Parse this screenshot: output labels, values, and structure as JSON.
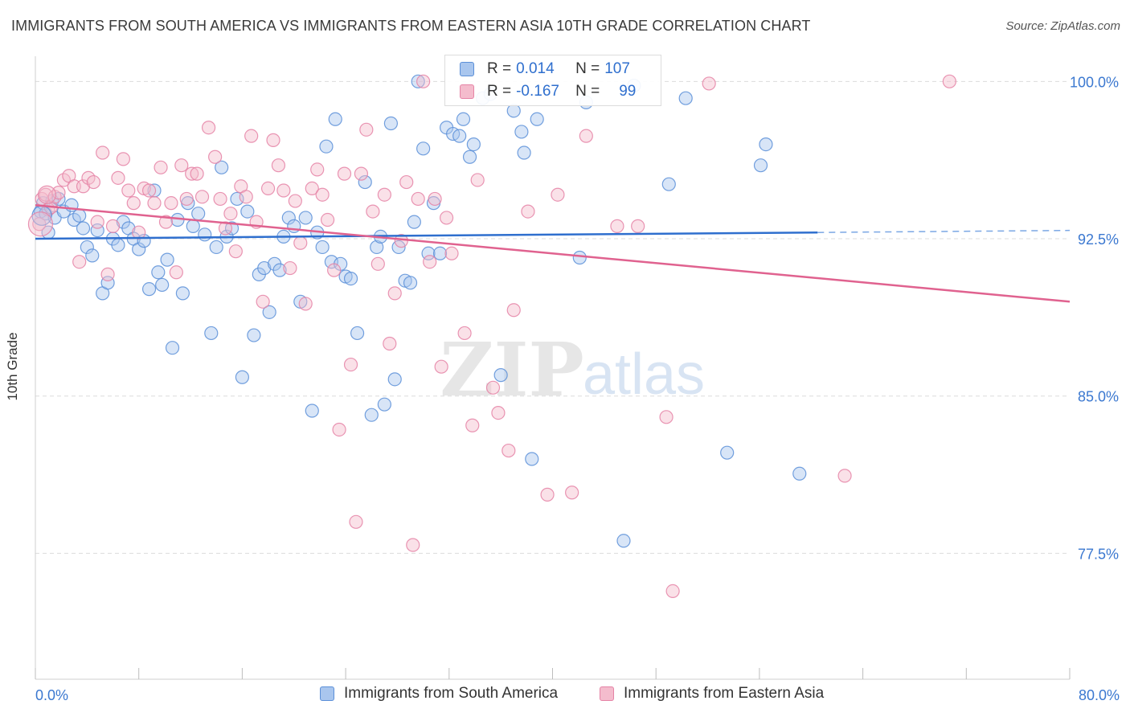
{
  "title": "IMMIGRANTS FROM SOUTH AMERICA VS IMMIGRANTS FROM EASTERN ASIA 10TH GRADE CORRELATION CHART",
  "source": "Source: ZipAtlas.com",
  "watermark": {
    "zip": "ZIP",
    "atlas": "atlas"
  },
  "stats": {
    "r_label": "R =",
    "n_label": "N =",
    "rows": [
      {
        "r": "0.014",
        "n": "107",
        "color": "#7ba7e4",
        "fill": "#b8d0f2"
      },
      {
        "r": "-0.167",
        "n": "99",
        "color": "#ec9bb6",
        "fill": "#f6c8d6"
      }
    ]
  },
  "chart_data": {
    "type": "scatter",
    "title": "IMMIGRANTS FROM SOUTH AMERICA VS IMMIGRANTS FROM EASTERN ASIA 10TH GRADE CORRELATION CHART",
    "xlabel": "",
    "ylabel": "10th Grade",
    "xlim": [
      0,
      80
    ],
    "ylim": [
      71.5,
      101.2
    ],
    "x_tick_labels": [
      "0.0%",
      "80.0%"
    ],
    "y_ticks": [
      77.5,
      85.0,
      92.5,
      100.0
    ],
    "y_tick_labels": [
      "77.5%",
      "85.0%",
      "92.5%",
      "100.0%"
    ],
    "grid": true,
    "legend_position": "bottom",
    "series": [
      {
        "name": "Immigrants from South America",
        "color": "#5b8fd8",
        "fill": "#a9c6ee",
        "trend": {
          "x": [
            0,
            60.5
          ],
          "y": [
            92.5,
            92.8
          ],
          "dash_to_x": 80.0
        },
        "points": [
          [
            0.4,
            93.8
          ],
          [
            0.6,
            94.2
          ],
          [
            0.8,
            93.7
          ],
          [
            1.0,
            92.8
          ],
          [
            1.3,
            94.3
          ],
          [
            1.5,
            93.5
          ],
          [
            1.8,
            94.4
          ],
          [
            2.2,
            93.8
          ],
          [
            2.8,
            94.1
          ],
          [
            3.0,
            93.4
          ],
          [
            3.4,
            93.6
          ],
          [
            3.7,
            93.0
          ],
          [
            4.0,
            92.1
          ],
          [
            4.4,
            91.7
          ],
          [
            4.8,
            92.9
          ],
          [
            5.2,
            89.9
          ],
          [
            5.6,
            90.4
          ],
          [
            6.0,
            92.5
          ],
          [
            6.4,
            92.2
          ],
          [
            6.8,
            93.3
          ],
          [
            7.2,
            93.0
          ],
          [
            7.6,
            92.5
          ],
          [
            8.0,
            92.0
          ],
          [
            8.4,
            92.4
          ],
          [
            8.8,
            90.1
          ],
          [
            9.2,
            94.8
          ],
          [
            9.5,
            90.9
          ],
          [
            9.8,
            90.3
          ],
          [
            10.2,
            91.5
          ],
          [
            10.6,
            87.3
          ],
          [
            11.0,
            93.4
          ],
          [
            11.4,
            89.9
          ],
          [
            11.8,
            94.2
          ],
          [
            12.2,
            93.1
          ],
          [
            12.6,
            93.7
          ],
          [
            13.1,
            92.7
          ],
          [
            13.6,
            88.0
          ],
          [
            14.0,
            92.1
          ],
          [
            14.4,
            95.9
          ],
          [
            14.8,
            92.6
          ],
          [
            15.2,
            93.0
          ],
          [
            15.6,
            94.4
          ],
          [
            16.0,
            85.9
          ],
          [
            16.4,
            93.8
          ],
          [
            16.9,
            87.9
          ],
          [
            17.3,
            90.8
          ],
          [
            17.7,
            91.1
          ],
          [
            18.1,
            89.0
          ],
          [
            18.5,
            91.3
          ],
          [
            18.9,
            91.0
          ],
          [
            19.2,
            92.6
          ],
          [
            19.6,
            93.5
          ],
          [
            20.0,
            93.1
          ],
          [
            20.5,
            89.5
          ],
          [
            20.9,
            93.5
          ],
          [
            21.4,
            84.3
          ],
          [
            21.8,
            92.8
          ],
          [
            22.2,
            92.1
          ],
          [
            22.5,
            96.9
          ],
          [
            22.9,
            91.4
          ],
          [
            23.2,
            98.2
          ],
          [
            23.6,
            91.3
          ],
          [
            24.0,
            90.7
          ],
          [
            24.4,
            90.6
          ],
          [
            24.9,
            88.0
          ],
          [
            25.5,
            95.2
          ],
          [
            26.0,
            84.1
          ],
          [
            26.4,
            92.1
          ],
          [
            26.7,
            92.6
          ],
          [
            27.0,
            84.6
          ],
          [
            27.5,
            98.0
          ],
          [
            27.8,
            85.8
          ],
          [
            28.1,
            92.1
          ],
          [
            28.6,
            90.5
          ],
          [
            29.0,
            90.4
          ],
          [
            29.3,
            93.3
          ],
          [
            29.6,
            100.0
          ],
          [
            30.0,
            96.8
          ],
          [
            30.4,
            91.8
          ],
          [
            30.8,
            94.2
          ],
          [
            31.3,
            91.8
          ],
          [
            31.8,
            97.8
          ],
          [
            32.3,
            97.5
          ],
          [
            32.8,
            97.4
          ],
          [
            33.1,
            98.2
          ],
          [
            33.6,
            96.4
          ],
          [
            33.9,
            97.0
          ],
          [
            34.6,
            99.2
          ],
          [
            35.2,
            99.4
          ],
          [
            36.0,
            86.0
          ],
          [
            37.0,
            98.6
          ],
          [
            37.6,
            97.6
          ],
          [
            37.8,
            96.6
          ],
          [
            38.8,
            98.2
          ],
          [
            38.4,
            82.0
          ],
          [
            42.1,
            91.6
          ],
          [
            42.6,
            99.0
          ],
          [
            45.5,
            78.1
          ],
          [
            46.3,
            99.8
          ],
          [
            49.0,
            95.1
          ],
          [
            50.3,
            99.2
          ],
          [
            53.5,
            82.3
          ],
          [
            56.1,
            96.0
          ],
          [
            56.5,
            97.0
          ],
          [
            59.1,
            81.3
          ]
        ]
      },
      {
        "name": "Immigrants from Eastern Asia",
        "color": "#e583a6",
        "fill": "#f4bccd",
        "trend": {
          "x": [
            0,
            80.0
          ],
          "y": [
            94.1,
            89.5
          ]
        },
        "points": [
          [
            0.3,
            93.2
          ],
          [
            0.5,
            94.4
          ],
          [
            0.8,
            94.6
          ],
          [
            1.0,
            93.9
          ],
          [
            1.2,
            94.0
          ],
          [
            1.5,
            94.5
          ],
          [
            1.8,
            94.7
          ],
          [
            2.2,
            95.3
          ],
          [
            2.6,
            95.5
          ],
          [
            3.0,
            95.0
          ],
          [
            3.4,
            91.4
          ],
          [
            3.7,
            95.0
          ],
          [
            4.1,
            95.4
          ],
          [
            4.5,
            95.2
          ],
          [
            4.8,
            93.3
          ],
          [
            5.2,
            96.6
          ],
          [
            5.6,
            90.8
          ],
          [
            6.0,
            93.1
          ],
          [
            6.4,
            95.4
          ],
          [
            6.8,
            96.3
          ],
          [
            7.2,
            94.8
          ],
          [
            7.6,
            94.2
          ],
          [
            8.0,
            92.8
          ],
          [
            8.4,
            94.9
          ],
          [
            8.8,
            94.8
          ],
          [
            9.2,
            94.2
          ],
          [
            9.7,
            95.9
          ],
          [
            10.1,
            93.3
          ],
          [
            10.5,
            94.2
          ],
          [
            10.9,
            90.9
          ],
          [
            11.3,
            96.0
          ],
          [
            11.7,
            94.4
          ],
          [
            12.1,
            95.6
          ],
          [
            12.5,
            95.6
          ],
          [
            12.9,
            94.5
          ],
          [
            13.4,
            97.8
          ],
          [
            13.9,
            96.4
          ],
          [
            14.3,
            94.4
          ],
          [
            14.7,
            93.0
          ],
          [
            15.1,
            93.7
          ],
          [
            15.5,
            91.9
          ],
          [
            15.9,
            95.0
          ],
          [
            16.3,
            94.5
          ],
          [
            16.7,
            97.4
          ],
          [
            17.1,
            93.3
          ],
          [
            17.6,
            89.5
          ],
          [
            18.0,
            94.9
          ],
          [
            18.4,
            97.2
          ],
          [
            18.8,
            96.0
          ],
          [
            19.2,
            94.8
          ],
          [
            19.7,
            91.1
          ],
          [
            20.1,
            94.3
          ],
          [
            20.5,
            92.3
          ],
          [
            20.9,
            89.4
          ],
          [
            21.4,
            94.9
          ],
          [
            21.8,
            95.8
          ],
          [
            22.2,
            94.6
          ],
          [
            22.6,
            93.4
          ],
          [
            23.1,
            91.0
          ],
          [
            23.5,
            83.4
          ],
          [
            23.9,
            95.6
          ],
          [
            24.4,
            86.5
          ],
          [
            24.8,
            79.0
          ],
          [
            25.2,
            95.6
          ],
          [
            25.6,
            97.7
          ],
          [
            26.1,
            93.8
          ],
          [
            26.5,
            91.3
          ],
          [
            27.0,
            94.6
          ],
          [
            27.4,
            87.5
          ],
          [
            27.8,
            89.9
          ],
          [
            28.3,
            92.4
          ],
          [
            28.7,
            95.2
          ],
          [
            29.2,
            77.9
          ],
          [
            29.6,
            94.4
          ],
          [
            30.0,
            100.0
          ],
          [
            30.5,
            91.4
          ],
          [
            30.9,
            94.4
          ],
          [
            31.4,
            86.4
          ],
          [
            31.8,
            93.5
          ],
          [
            32.2,
            91.8
          ],
          [
            33.2,
            88.0
          ],
          [
            33.8,
            83.6
          ],
          [
            34.2,
            95.3
          ],
          [
            35.4,
            85.4
          ],
          [
            35.8,
            84.2
          ],
          [
            36.6,
            82.4
          ],
          [
            37.0,
            89.1
          ],
          [
            38.1,
            93.8
          ],
          [
            39.6,
            80.3
          ],
          [
            40.4,
            94.6
          ],
          [
            41.5,
            80.4
          ],
          [
            42.6,
            97.4
          ],
          [
            45.0,
            93.1
          ],
          [
            46.6,
            93.1
          ],
          [
            48.8,
            84.0
          ],
          [
            49.3,
            75.7
          ],
          [
            52.1,
            99.9
          ],
          [
            62.6,
            81.2
          ],
          [
            70.7,
            100.0
          ]
        ]
      }
    ]
  }
}
